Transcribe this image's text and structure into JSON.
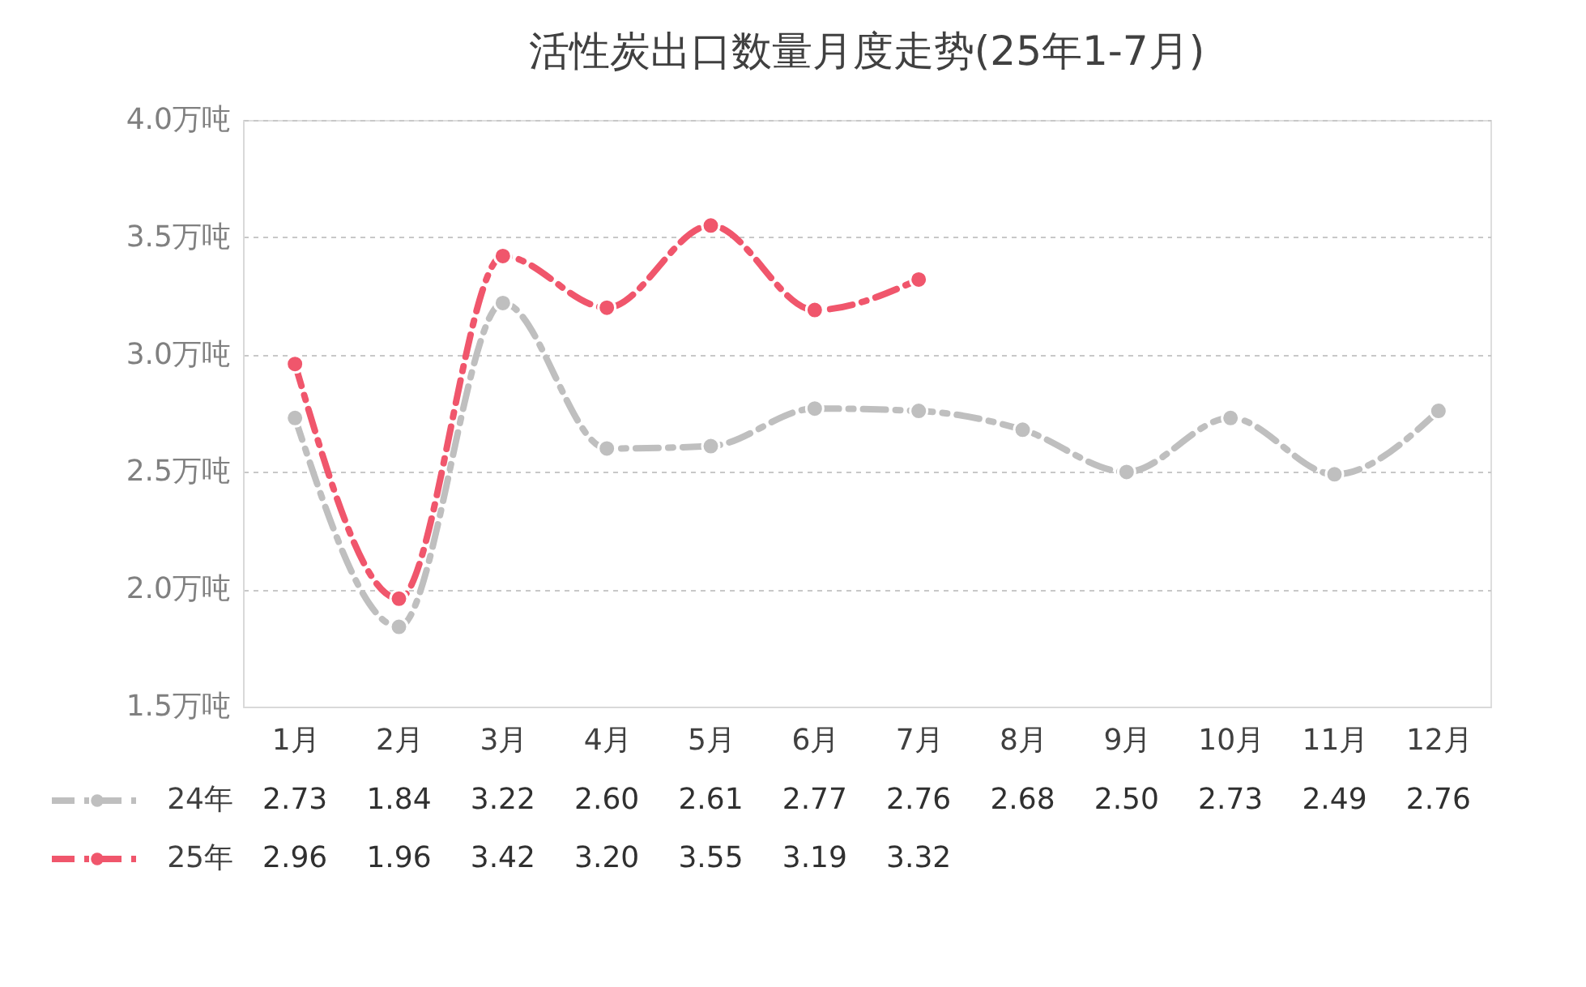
{
  "chart_data": {
    "type": "line",
    "title": "活性炭出口数量月度走势(25年1-7月)",
    "categories": [
      "1月",
      "2月",
      "3月",
      "4月",
      "5月",
      "6月",
      "7月",
      "8月",
      "9月",
      "10月",
      "11月",
      "12月"
    ],
    "series": [
      {
        "name": "24年",
        "color": "#bfbfbf",
        "values": [
          2.73,
          1.84,
          3.22,
          2.6,
          2.61,
          2.77,
          2.76,
          2.68,
          2.5,
          2.73,
          2.49,
          2.76
        ],
        "value_labels": [
          "2.73",
          "1.84",
          "3.22",
          "2.60",
          "2.61",
          "2.77",
          "2.76",
          "2.68",
          "2.50",
          "2.73",
          "2.49",
          "2.76"
        ]
      },
      {
        "name": "25年",
        "color": "#f0566c",
        "values": [
          2.96,
          1.96,
          3.42,
          3.2,
          3.55,
          3.19,
          3.32,
          null,
          null,
          null,
          null,
          null
        ],
        "value_labels": [
          "2.96",
          "1.96",
          "3.42",
          "3.20",
          "3.55",
          "3.19",
          "3.32",
          null,
          null,
          null,
          null,
          null
        ]
      }
    ],
    "ylim": [
      1.5,
      4.0
    ],
    "yticks": [
      {
        "value": 1.5,
        "label": "1.5万吨"
      },
      {
        "value": 2.0,
        "label": "2.0万吨"
      },
      {
        "value": 2.5,
        "label": "2.5万吨"
      },
      {
        "value": 3.0,
        "label": "3.0万吨"
      },
      {
        "value": 3.5,
        "label": "3.5万吨"
      },
      {
        "value": 4.0,
        "label": "4.0万吨"
      }
    ],
    "grid": "y",
    "legend": "bottom",
    "marker": "circle",
    "line_style": "dashed"
  }
}
